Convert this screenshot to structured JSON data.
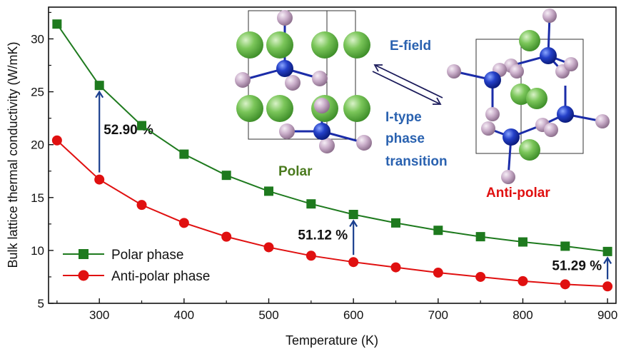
{
  "chart_data": {
    "type": "line",
    "title": "",
    "xlabel": "Temperature (K)",
    "ylabel": "Bulk lattice thermal conductivity (W/mK)",
    "xlim": [
      240,
      910
    ],
    "ylim": [
      5,
      33
    ],
    "xticks": [
      300,
      400,
      500,
      600,
      700,
      800,
      900
    ],
    "yticks": [
      5,
      10,
      15,
      20,
      25,
      30
    ],
    "x": [
      250,
      300,
      350,
      400,
      450,
      500,
      550,
      600,
      650,
      700,
      750,
      800,
      850,
      900
    ],
    "series": [
      {
        "name": "Polar phase",
        "color": "#1e7a1e",
        "marker": "square",
        "values": [
          31.4,
          25.6,
          21.8,
          19.1,
          17.1,
          15.6,
          14.4,
          13.4,
          12.6,
          11.9,
          11.3,
          10.8,
          10.4,
          9.9
        ]
      },
      {
        "name": "Anti-polar phase",
        "color": "#e01010",
        "marker": "circle",
        "values": [
          20.4,
          16.7,
          14.3,
          12.6,
          11.3,
          10.3,
          9.5,
          8.9,
          8.4,
          7.9,
          7.5,
          7.1,
          6.8,
          6.6
        ]
      }
    ],
    "annotations": [
      {
        "text": "52.90 %",
        "x": 300,
        "from": 16.7,
        "to": 25.6
      },
      {
        "text": "51.12 %",
        "x": 600,
        "from": 8.9,
        "to": 13.4
      },
      {
        "text": "51.29 %",
        "x": 900,
        "from": 6.6,
        "to": 9.9
      }
    ],
    "legend": "bottom-left"
  },
  "inset": {
    "polar_label": "Polar",
    "antipolar_label": "Anti-polar",
    "efield_label": "E-field",
    "transition_label_line1": "I-type",
    "transition_label_line2": "phase",
    "transition_label_line3": "transition",
    "polar_color": "#4a7a1e",
    "antipolar_color": "#e01010",
    "transition_color": "#2a62b0"
  }
}
